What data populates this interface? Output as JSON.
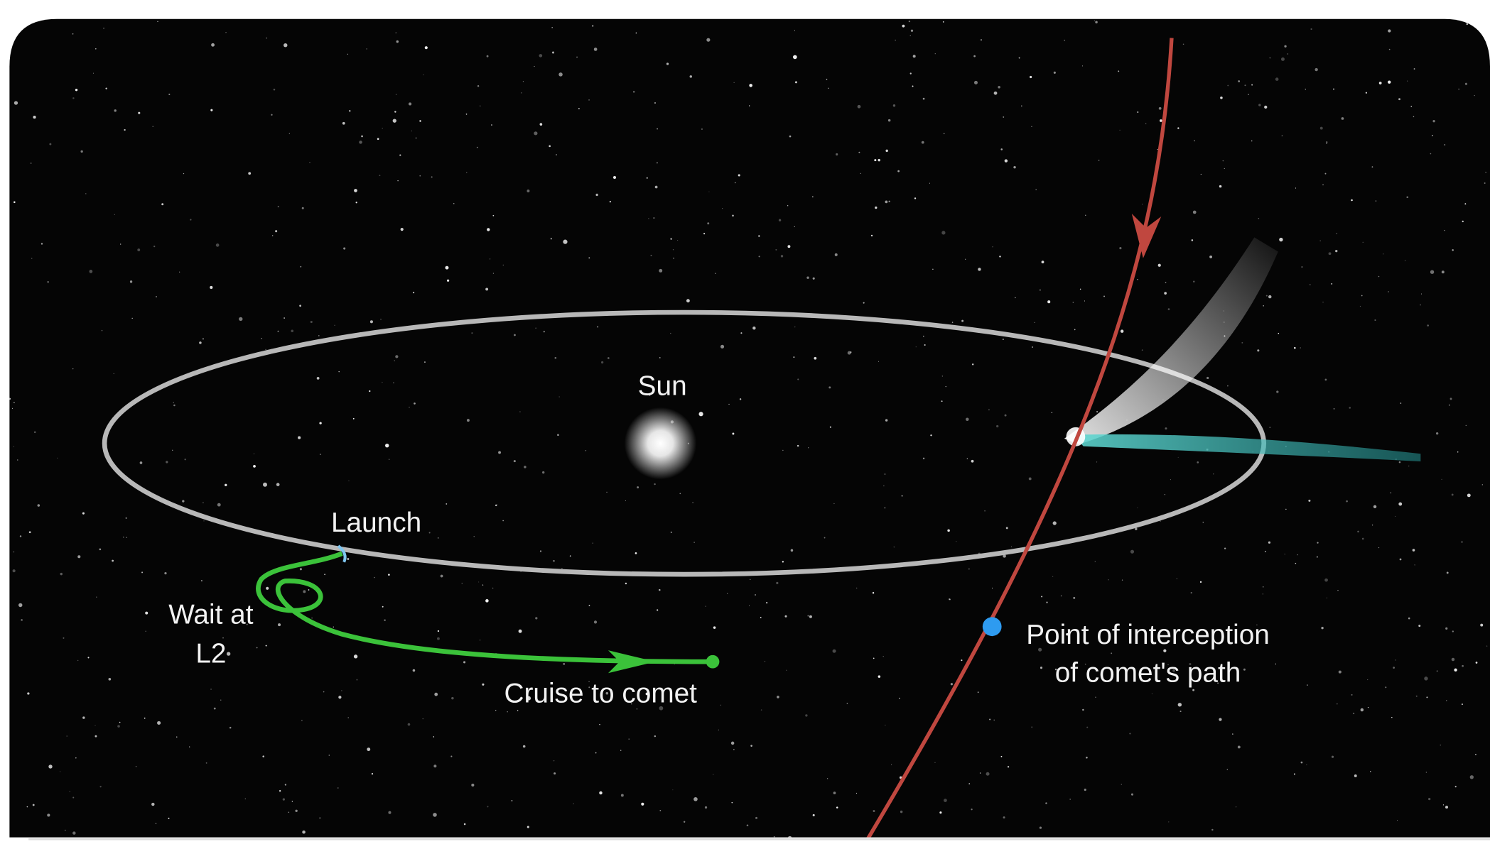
{
  "labels": {
    "sun": "Sun",
    "launch": "Launch",
    "wait": [
      "Wait at",
      "L2"
    ],
    "cruise": "Cruise to comet",
    "interception": [
      "Point of interception",
      "of comet's path"
    ]
  }
}
